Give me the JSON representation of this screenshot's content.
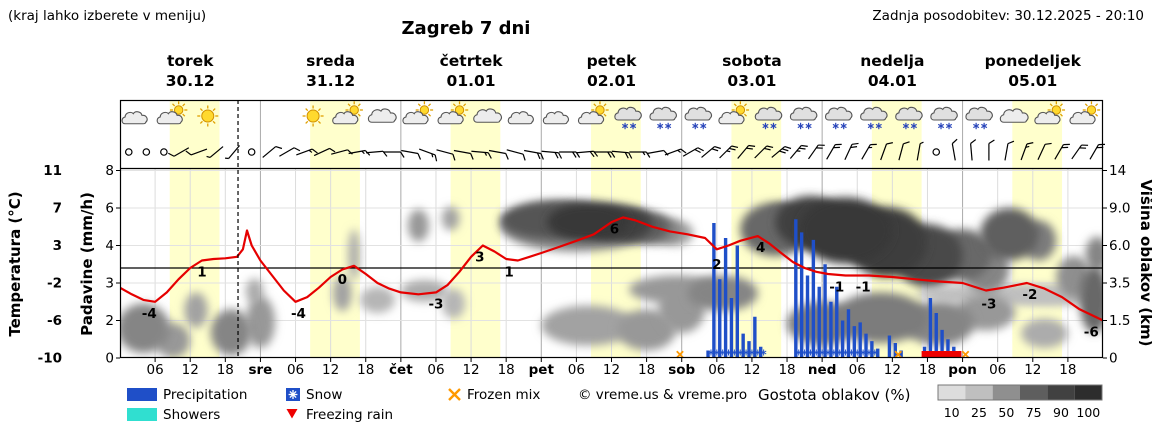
{
  "header": {
    "hint": "(kraj lahko izberete v meniju)",
    "title": "Zagreb 7 dni",
    "updated": "Zadnja posodobitev: 30.12.2025 - 20:10",
    "accent_blue": "#0000cc"
  },
  "days": [
    {
      "name": "torek",
      "date": "30.12",
      "weekend": false
    },
    {
      "name": "sreda",
      "date": "31.12",
      "weekend": false
    },
    {
      "name": "četrtek",
      "date": "01.01",
      "weekend": false
    },
    {
      "name": "petek",
      "date": "02.01",
      "weekend": false
    },
    {
      "name": "sobota",
      "date": "03.01",
      "weekend": true
    },
    {
      "name": "nedelja",
      "date": "04.01",
      "weekend": true
    },
    {
      "name": "ponedeljek",
      "date": "05.01",
      "weekend": false
    }
  ],
  "axes": {
    "temp": {
      "label": "Temperatura (°C)",
      "ticks": [
        11,
        7,
        3,
        -2,
        -6,
        -10
      ],
      "color": "#ff0000"
    },
    "precip": {
      "label": "Padavine (mm/h)",
      "ticks": [
        8,
        6,
        4,
        3,
        2,
        0
      ]
    },
    "cloud": {
      "label": "Višina oblakov (km)",
      "ticks": [
        "14",
        "9.0",
        "6.0",
        "3.5",
        "1.5",
        "0"
      ]
    },
    "xticks": [
      {
        "t": 6,
        "l": "06"
      },
      {
        "t": 12,
        "l": "12"
      },
      {
        "t": 18,
        "l": "18"
      },
      {
        "t": 24,
        "l": "sre",
        "b": 1
      },
      {
        "t": 30,
        "l": "06"
      },
      {
        "t": 36,
        "l": "12"
      },
      {
        "t": 42,
        "l": "18"
      },
      {
        "t": 48,
        "l": "čet",
        "b": 1
      },
      {
        "t": 54,
        "l": "06"
      },
      {
        "t": 60,
        "l": "12"
      },
      {
        "t": 66,
        "l": "18"
      },
      {
        "t": 72,
        "l": "pet",
        "b": 1
      },
      {
        "t": 78,
        "l": "06"
      },
      {
        "t": 84,
        "l": "12"
      },
      {
        "t": 90,
        "l": "18"
      },
      {
        "t": 96,
        "l": "sob",
        "b": 1
      },
      {
        "t": 102,
        "l": "06"
      },
      {
        "t": 108,
        "l": "12"
      },
      {
        "t": 114,
        "l": "18"
      },
      {
        "t": 120,
        "l": "ned",
        "b": 1
      },
      {
        "t": 126,
        "l": "06"
      },
      {
        "t": 132,
        "l": "12"
      },
      {
        "t": 138,
        "l": "18"
      },
      {
        "t": 144,
        "l": "pon",
        "b": 1
      },
      {
        "t": 150,
        "l": "06"
      },
      {
        "t": 156,
        "l": "12"
      },
      {
        "t": 162,
        "l": "18"
      }
    ]
  },
  "legend": {
    "precipitation": "Precipitation",
    "snow": "Snow",
    "frozen_mix": "Frozen mix",
    "showers": "Showers",
    "freezing_rain": "Freezing rain",
    "copyright": "© vreme.us & vreme.pro",
    "cloud_density": "Gostota oblakov (%)",
    "density_ticks": [
      "10",
      "25",
      "50",
      "75",
      "90",
      "100"
    ],
    "colors": {
      "precip": "#1f4fc8",
      "showers": "#30dfd0",
      "snow": "#1f4fc8",
      "frozen": "#ff9900",
      "freezing": "#ee0000",
      "temp_line": "#e60000",
      "day_band": "#ffffcc"
    }
  },
  "chart_data": {
    "type": "meteogram",
    "x_hours_range": [
      0,
      168
    ],
    "hours_per_day": 24,
    "current_time_hour": 20.17,
    "daylight": [
      8.5,
      17
    ],
    "temperature_c": {
      "points": [
        [
          0,
          -2.5
        ],
        [
          2,
          -3.2
        ],
        [
          4,
          -3.8
        ],
        [
          6,
          -4
        ],
        [
          8,
          -3
        ],
        [
          10,
          -1.5
        ],
        [
          12,
          0
        ],
        [
          14,
          1
        ],
        [
          16,
          1.2
        ],
        [
          18,
          1.3
        ],
        [
          20,
          1.5
        ],
        [
          21,
          2.5
        ],
        [
          21.7,
          4.6
        ],
        [
          22.5,
          3
        ],
        [
          24,
          1
        ],
        [
          26,
          -1
        ],
        [
          28,
          -2.8
        ],
        [
          30,
          -4
        ],
        [
          32,
          -3.5
        ],
        [
          34,
          -2.5
        ],
        [
          36,
          -1.2
        ],
        [
          38,
          -0.2
        ],
        [
          40,
          0.3
        ],
        [
          42,
          -0.8
        ],
        [
          44,
          -2
        ],
        [
          46,
          -2.6
        ],
        [
          48,
          -3
        ],
        [
          51,
          -3.2
        ],
        [
          54,
          -3
        ],
        [
          56,
          -2.2
        ],
        [
          58,
          -0.5
        ],
        [
          60,
          1.5
        ],
        [
          62,
          3
        ],
        [
          64,
          2.2
        ],
        [
          66,
          1.2
        ],
        [
          68,
          1
        ],
        [
          70,
          1.5
        ],
        [
          72,
          2
        ],
        [
          75,
          2.8
        ],
        [
          78,
          3.5
        ],
        [
          81,
          4.2
        ],
        [
          84,
          5.5
        ],
        [
          86,
          6
        ],
        [
          88,
          5.7
        ],
        [
          91,
          5
        ],
        [
          94,
          4.5
        ],
        [
          97,
          4.2
        ],
        [
          100,
          3.8
        ],
        [
          102,
          2.5
        ],
        [
          104,
          3
        ],
        [
          106,
          3.5
        ],
        [
          109,
          4
        ],
        [
          111,
          3.2
        ],
        [
          113,
          2
        ],
        [
          115,
          0.8
        ],
        [
          117,
          0
        ],
        [
          119,
          -0.5
        ],
        [
          121,
          -0.8
        ],
        [
          124,
          -1
        ],
        [
          128,
          -1
        ],
        [
          132,
          -1.2
        ],
        [
          136,
          -1.5
        ],
        [
          140,
          -1.8
        ],
        [
          144,
          -2
        ],
        [
          148,
          -2.8
        ],
        [
          151,
          -2.5
        ],
        [
          155,
          -2
        ],
        [
          158,
          -2.6
        ],
        [
          161,
          -3.5
        ],
        [
          164,
          -4.8
        ],
        [
          168,
          -6
        ]
      ]
    },
    "temp_labels": [
      [
        5,
        -4
      ],
      [
        14,
        1
      ],
      [
        30.5,
        -4
      ],
      [
        38,
        0
      ],
      [
        54,
        -3
      ],
      [
        61.5,
        3
      ],
      [
        66.5,
        1
      ],
      [
        84.5,
        6
      ],
      [
        102,
        2
      ],
      [
        109.5,
        4
      ],
      [
        122.5,
        -1
      ],
      [
        127,
        -1
      ],
      [
        148.5,
        -3
      ],
      [
        155.5,
        -2
      ],
      [
        166,
        -6
      ]
    ],
    "precip_bars_mm": [
      [
        100.5,
        0.4
      ],
      [
        101.5,
        5.2
      ],
      [
        102.5,
        3.1
      ],
      [
        103.5,
        4.4
      ],
      [
        104.5,
        2.6
      ],
      [
        105.5,
        4.0
      ],
      [
        106.5,
        1.3
      ],
      [
        107.5,
        0.9
      ],
      [
        108.5,
        2.1
      ],
      [
        109.5,
        0.6
      ],
      [
        115.5,
        5.4
      ],
      [
        116.5,
        4.7
      ],
      [
        117.5,
        3.2
      ],
      [
        118.5,
        4.3
      ],
      [
        119.5,
        2.9
      ],
      [
        120.5,
        3.5
      ],
      [
        121.5,
        2.5
      ],
      [
        122.5,
        2.9
      ],
      [
        123.5,
        2.0
      ],
      [
        124.5,
        2.3
      ],
      [
        125.5,
        1.7
      ],
      [
        126.5,
        1.9
      ],
      [
        127.5,
        1.3
      ],
      [
        128.5,
        0.9
      ],
      [
        129.5,
        0.5
      ],
      [
        131.5,
        1.2
      ],
      [
        132.5,
        0.8
      ],
      [
        133.5,
        0.4
      ],
      [
        137.5,
        0.6
      ],
      [
        138.5,
        2.6
      ],
      [
        139.5,
        2.2
      ],
      [
        140.5,
        1.5
      ],
      [
        141.5,
        1.0
      ],
      [
        142.5,
        0.6
      ],
      [
        143.5,
        0.3
      ]
    ],
    "snow_mark_hours": [
      101,
      102,
      103,
      104,
      105,
      106,
      107,
      108,
      109,
      110,
      116,
      117,
      118,
      119,
      120,
      121,
      122,
      123,
      124,
      125,
      126,
      127,
      128,
      129
    ],
    "freezing_rain_spans": [
      [
        137,
        143.8
      ]
    ],
    "frozen_mix_hours": [
      95.7,
      133,
      144.5
    ],
    "clouds": [
      [
        4,
        1.3,
        4.5,
        1.1,
        55
      ],
      [
        9,
        0.7,
        3,
        0.7,
        45
      ],
      [
        13,
        2.1,
        2,
        0.9,
        40
      ],
      [
        19,
        1.1,
        3.5,
        1.0,
        55
      ],
      [
        24,
        1.6,
        2.5,
        1.2,
        45
      ],
      [
        23,
        3.1,
        1.5,
        0.7,
        35
      ],
      [
        38,
        3.0,
        1.6,
        1.0,
        40
      ],
      [
        40,
        5.5,
        1,
        1.8,
        35
      ],
      [
        44,
        2.6,
        3,
        0.7,
        30
      ],
      [
        52,
        3.1,
        4,
        0.6,
        35
      ],
      [
        51,
        7.6,
        1.8,
        1.3,
        45
      ],
      [
        56.5,
        8.2,
        1.5,
        1.0,
        40
      ],
      [
        57,
        2.4,
        2,
        0.8,
        30
      ],
      [
        74,
        8.2,
        9,
        1.7,
        80
      ],
      [
        78,
        7.8,
        13,
        2.2,
        55
      ],
      [
        80,
        8.0,
        7,
        1.6,
        95
      ],
      [
        85,
        7.8,
        6,
        1.5,
        90
      ],
      [
        89,
        7.5,
        5,
        1.3,
        75
      ],
      [
        92,
        7.2,
        4,
        1.1,
        55
      ],
      [
        95,
        7,
        3,
        1,
        40
      ],
      [
        80,
        1.4,
        8,
        0.9,
        40
      ],
      [
        90,
        1.2,
        5,
        0.9,
        45
      ],
      [
        96,
        2.2,
        4,
        1.2,
        45
      ],
      [
        95,
        3.2,
        8,
        0.8,
        45
      ],
      [
        103,
        3.0,
        6,
        1.0,
        55
      ],
      [
        113,
        8,
        3,
        1.5,
        70
      ],
      [
        112,
        7.5,
        6,
        2.2,
        70
      ],
      [
        118,
        8.2,
        6,
        2.4,
        90
      ],
      [
        124,
        7.6,
        8,
        2.8,
        95
      ],
      [
        131,
        6.5,
        7,
        2.6,
        92
      ],
      [
        138,
        5.5,
        6,
        2.2,
        85
      ],
      [
        144,
        5.5,
        5,
        1.8,
        70
      ],
      [
        148,
        4.5,
        4,
        1.5,
        55
      ],
      [
        152,
        7,
        5,
        2,
        75
      ],
      [
        157,
        6.5,
        3,
        1.5,
        60
      ],
      [
        120,
        1.5,
        6,
        1.0,
        60
      ],
      [
        130,
        1.8,
        8,
        1.2,
        60
      ],
      [
        140,
        1.5,
        6,
        1.0,
        55
      ],
      [
        148,
        2.0,
        5,
        0.9,
        45
      ],
      [
        150,
        2.9,
        14,
        0.55,
        25
      ],
      [
        160,
        2.8,
        8,
        0.5,
        25
      ],
      [
        158,
        1.0,
        4,
        0.6,
        35
      ],
      [
        163,
        4.0,
        3,
        1.3,
        50
      ],
      [
        166.5,
        2.8,
        2.5,
        1.8,
        70
      ],
      [
        167,
        5.5,
        2,
        1.2,
        55
      ]
    ],
    "icons": [
      "cloud-moon",
      "sun-cloud",
      "sun",
      "moon",
      "moon",
      "sun",
      "sun-cloud",
      "cloud",
      "sun-cloud",
      "sun-cloud",
      "cloud",
      "cloud-moon",
      "cloud-moon",
      "sun-cloud",
      "snow-cloud",
      "snow-cloud",
      "snow-cloud",
      "sun-cloud",
      "snow-cloud",
      "snow-cloud",
      "snow-cloud",
      "snow-cloud",
      "snow-cloud",
      "snow-cloud",
      "snow-cloud",
      "cloud",
      "sun-cloud",
      "sun-cloud"
    ],
    "winds": [
      [
        0,
        0,
        0,
        1
      ],
      [
        0,
        0,
        0,
        1
      ],
      [
        0,
        0,
        0,
        1
      ],
      [
        240,
        1,
        0,
        0
      ],
      [
        250,
        1,
        0,
        0
      ],
      [
        230,
        0,
        1,
        0
      ],
      [
        220,
        0,
        1,
        0
      ],
      [
        0,
        0,
        0,
        1
      ],
      [
        50,
        1,
        0,
        0
      ],
      [
        60,
        1,
        0,
        0
      ],
      [
        70,
        1,
        1,
        0
      ],
      [
        65,
        1,
        0,
        0
      ],
      [
        75,
        1,
        0,
        0
      ],
      [
        80,
        1,
        1,
        0
      ],
      [
        85,
        1,
        0,
        0
      ],
      [
        90,
        1,
        0,
        0
      ],
      [
        100,
        1,
        0,
        0
      ],
      [
        110,
        1,
        1,
        0
      ],
      [
        105,
        1,
        0,
        0
      ],
      [
        100,
        1,
        0,
        0
      ],
      [
        95,
        1,
        1,
        0
      ],
      [
        100,
        1,
        0,
        0
      ],
      [
        105,
        1,
        0,
        0
      ],
      [
        100,
        2,
        0,
        0
      ],
      [
        95,
        2,
        0,
        0
      ],
      [
        90,
        2,
        0,
        0
      ],
      [
        85,
        2,
        0,
        0
      ],
      [
        90,
        2,
        0,
        0
      ],
      [
        95,
        2,
        0,
        0
      ],
      [
        90,
        1,
        1,
        0
      ],
      [
        80,
        1,
        0,
        0
      ],
      [
        70,
        1,
        1,
        0
      ],
      [
        60,
        2,
        0,
        0
      ],
      [
        50,
        2,
        0,
        0
      ],
      [
        45,
        2,
        1,
        0
      ],
      [
        40,
        2,
        0,
        0
      ],
      [
        45,
        2,
        0,
        0
      ],
      [
        50,
        3,
        0,
        0
      ],
      [
        40,
        2,
        1,
        0
      ],
      [
        35,
        2,
        0,
        0
      ],
      [
        30,
        2,
        0,
        0
      ],
      [
        25,
        2,
        0,
        0
      ],
      [
        30,
        1,
        1,
        0
      ],
      [
        20,
        1,
        0,
        0
      ],
      [
        15,
        1,
        0,
        0
      ],
      [
        10,
        0,
        1,
        0
      ],
      [
        0,
        0,
        0,
        1
      ],
      [
        350,
        1,
        0,
        0
      ],
      [
        355,
        1,
        0,
        0
      ],
      [
        0,
        1,
        0,
        0
      ],
      [
        10,
        1,
        0,
        0
      ],
      [
        20,
        1,
        1,
        0
      ],
      [
        25,
        1,
        0,
        0
      ],
      [
        30,
        2,
        0,
        0
      ],
      [
        35,
        2,
        0,
        0
      ],
      [
        30,
        2,
        0,
        0
      ]
    ]
  }
}
